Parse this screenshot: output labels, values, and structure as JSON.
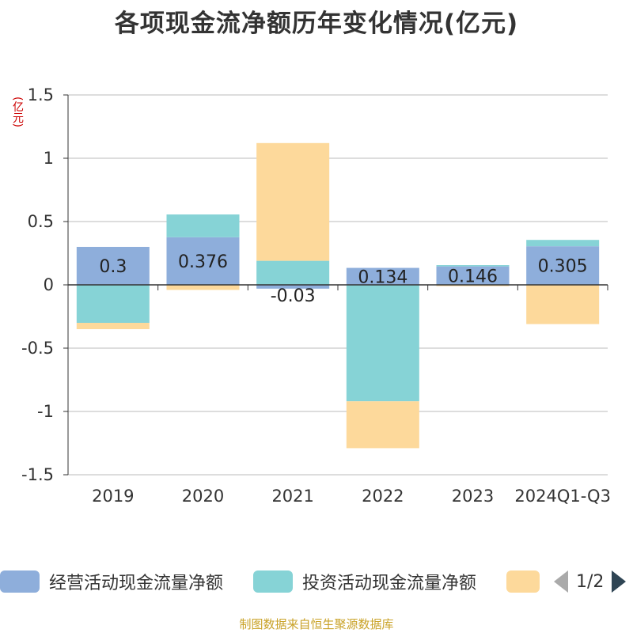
{
  "title": "各项现金流净额历年变化情况(亿元)",
  "unit_label": "(亿元)",
  "source": "制图数据来自恒生聚源数据库",
  "legend": {
    "items": [
      {
        "label": "经营活动现金流量净额",
        "color": "#8eaedb"
      },
      {
        "label": "投资活动现金流量净额",
        "color": "#86d3d6"
      },
      {
        "label": "",
        "color": "#fdd99b"
      }
    ],
    "page": "1/2"
  },
  "chart_data": {
    "type": "bar",
    "stacked": true,
    "title": "各项现金流净额历年变化情况(亿元)",
    "ylabel": "(亿元)",
    "xlabel": "",
    "ylim": [
      -1.5,
      1.5
    ],
    "yticks": [
      1.5,
      1,
      0.5,
      0,
      -0.5,
      -1,
      -1.5
    ],
    "ytick_labels": [
      "1.5",
      "1",
      "0.5",
      "0",
      "-0.5",
      "-1",
      "-1.5"
    ],
    "grid": true,
    "legend_position": "bottom",
    "categories": [
      "2019",
      "2020",
      "2021",
      "2022",
      "2023",
      "2024Q1-Q3"
    ],
    "series": [
      {
        "name": "经营活动现金流量净额",
        "color": "#8eaedb",
        "values": [
          0.3,
          0.376,
          -0.03,
          0.134,
          0.146,
          0.305
        ]
      },
      {
        "name": "投资活动现金流量净额",
        "color": "#86d3d6",
        "values": [
          -0.3,
          0.18,
          0.19,
          -0.92,
          0.01,
          0.05
        ]
      },
      {
        "color": "#fdd99b",
        "values": [
          -0.05,
          -0.04,
          0.93,
          -0.37,
          -0.01,
          -0.31
        ]
      }
    ],
    "data_labels": [
      "0.3",
      "0.376",
      "-0.03",
      "0.134",
      "0.146",
      "0.305"
    ]
  }
}
